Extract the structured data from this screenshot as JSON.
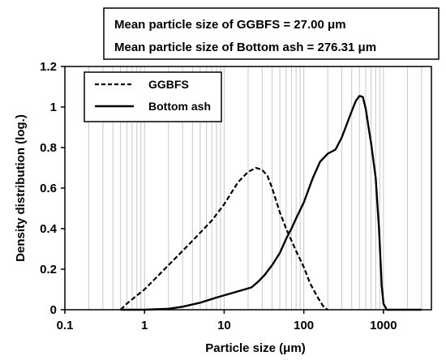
{
  "chart_data": {
    "type": "line",
    "title": "",
    "xlabel": "Particle size (μm)",
    "ylabel": "Density distribution (log.)",
    "xscale": "log",
    "xlim": [
      0.1,
      4000
    ],
    "ylim": [
      0,
      1.2
    ],
    "x_ticks": [
      0.1,
      1,
      10,
      100,
      1000
    ],
    "x_tick_labels": [
      "0.1",
      "1",
      "10",
      "100",
      "1000"
    ],
    "y_ticks": [
      0,
      0.2,
      0.4,
      0.6,
      0.8,
      1,
      1.2
    ],
    "y_tick_labels": [
      "0",
      "0.2",
      "0.4",
      "0.6",
      "0.8",
      "1",
      "1.2"
    ],
    "grid": "vertical-minor-log",
    "legend_position": "top-left",
    "annotation": [
      "Mean particle size of GGBFS = 27.00 μm",
      "Mean particle size of Bottom ash = 276.31 μm"
    ],
    "series": [
      {
        "name": "GGBFS",
        "style": "dashed",
        "color": "#000000",
        "x": [
          0.5,
          0.6,
          0.8,
          1,
          1.5,
          2,
          3,
          4,
          5,
          7,
          10,
          12,
          15,
          20,
          25,
          30,
          35,
          40,
          50,
          60,
          80,
          100,
          120,
          150,
          180,
          200
        ],
        "y": [
          0,
          0.03,
          0.07,
          0.1,
          0.17,
          0.22,
          0.29,
          0.34,
          0.38,
          0.44,
          0.52,
          0.57,
          0.63,
          0.68,
          0.7,
          0.69,
          0.66,
          0.6,
          0.48,
          0.4,
          0.29,
          0.21,
          0.13,
          0.06,
          0.01,
          0
        ]
      },
      {
        "name": "Bottom ash",
        "style": "solid",
        "color": "#000000",
        "x": [
          0.5,
          1,
          2,
          3,
          5,
          8,
          12,
          18,
          22,
          27,
          32,
          40,
          50,
          60,
          70,
          80,
          100,
          130,
          160,
          200,
          250,
          300,
          350,
          400,
          450,
          500,
          550,
          600,
          650,
          700,
          800,
          880,
          950,
          1000,
          1100,
          2000,
          3000
        ],
        "y": [
          0,
          0,
          0.005,
          0.015,
          0.035,
          0.06,
          0.08,
          0.1,
          0.11,
          0.14,
          0.17,
          0.22,
          0.28,
          0.35,
          0.4,
          0.45,
          0.53,
          0.65,
          0.73,
          0.77,
          0.79,
          0.85,
          0.92,
          0.98,
          1.03,
          1.055,
          1.05,
          0.99,
          0.9,
          0.82,
          0.65,
          0.4,
          0.12,
          0.03,
          0,
          0,
          0
        ]
      }
    ]
  }
}
